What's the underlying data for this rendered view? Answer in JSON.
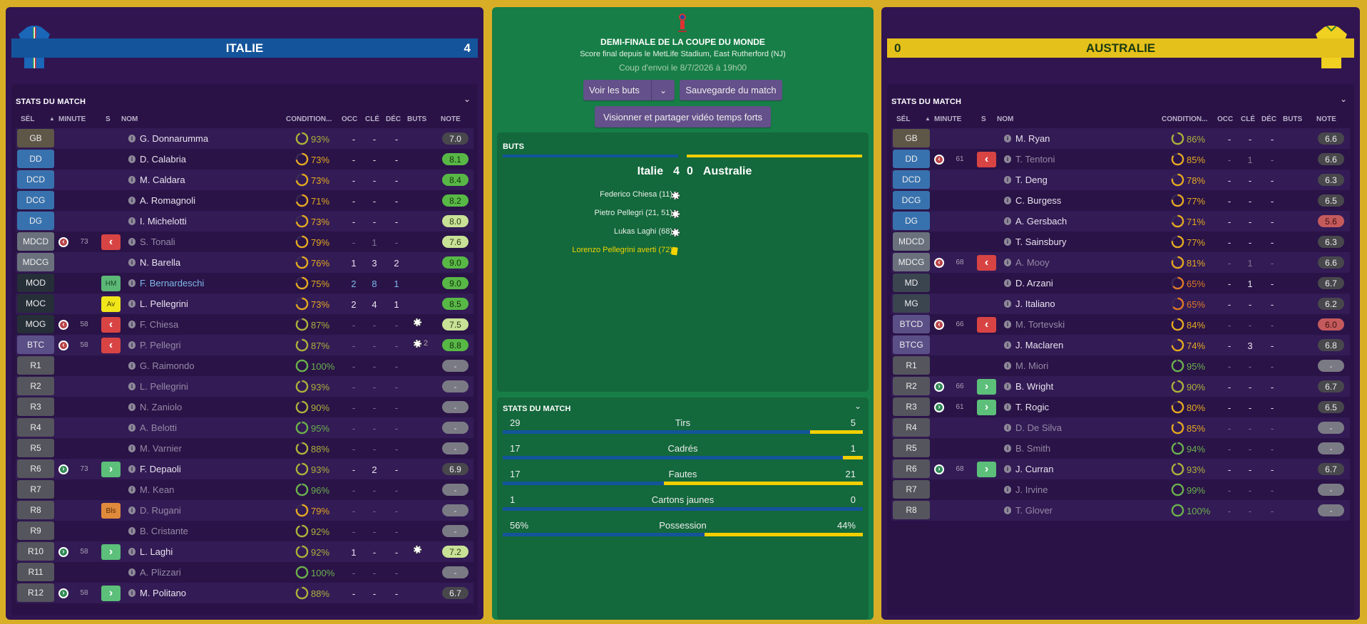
{
  "colors": {
    "italy": "#14549b",
    "australia": "#f3cf00",
    "background": "#d9ae27",
    "panel": "#311551",
    "center": "#177e47"
  },
  "home": {
    "name": "ITALIE",
    "score": "4",
    "stats_title": "STATS DU MATCH",
    "players": [
      {
        "pos": "GB",
        "name": "G. Donnarumma",
        "cond": 93,
        "occ": "-",
        "cle": "-",
        "dec": "-",
        "note": "7.0",
        "noteStyle": "dark"
      },
      {
        "pos": "DD",
        "name": "D. Calabria",
        "cond": 73,
        "occ": "-",
        "cle": "-",
        "dec": "-",
        "note": "8.1",
        "noteStyle": "green"
      },
      {
        "pos": "DCD",
        "name": "M. Caldara",
        "cond": 73,
        "occ": "-",
        "cle": "-",
        "dec": "-",
        "note": "8.4",
        "noteStyle": "green"
      },
      {
        "pos": "DCG",
        "name": "A. Romagnoli",
        "cond": 71,
        "occ": "-",
        "cle": "-",
        "dec": "-",
        "note": "8.2",
        "noteStyle": "green"
      },
      {
        "pos": "DG",
        "name": "I. Michelotti",
        "cond": 73,
        "occ": "-",
        "cle": "-",
        "dec": "-",
        "note": "8.0",
        "noteStyle": "light"
      },
      {
        "pos": "MDCD",
        "sub": "off",
        "minute": "73",
        "name": "S. Tonali",
        "cond": 79,
        "occ": "-",
        "cle": "1",
        "dec": "-",
        "note": "7.6",
        "noteStyle": "light",
        "dim": true
      },
      {
        "pos": "MDCG",
        "name": "N. Barella",
        "cond": 76,
        "occ": "1",
        "cle": "3",
        "dec": "2",
        "note": "9.0",
        "noteStyle": "green"
      },
      {
        "pos": "MOD",
        "badge": "HM",
        "badgeStyle": "hm",
        "name": "F. Bernardeschi",
        "cond": 75,
        "occ": "2",
        "cle": "8",
        "dec": "1",
        "note": "9.0",
        "noteStyle": "green",
        "hl": true
      },
      {
        "pos": "MOC",
        "badge": "Av",
        "badgeStyle": "av",
        "name": "L. Pellegrini",
        "cond": 73,
        "occ": "2",
        "cle": "4",
        "dec": "1",
        "note": "8.5",
        "noteStyle": "green"
      },
      {
        "pos": "MOG",
        "sub": "off",
        "minute": "58",
        "name": "F. Chiesa",
        "cond": 87,
        "occ": "-",
        "cle": "-",
        "dec": "-",
        "goals": 1,
        "note": "7.5",
        "noteStyle": "light",
        "dim": true
      },
      {
        "pos": "BTC",
        "sub": "off",
        "minute": "58",
        "name": "P. Pellegri",
        "cond": 87,
        "occ": "-",
        "cle": "-",
        "dec": "-",
        "goals": 2,
        "goalsLabel": "2",
        "note": "8.8",
        "noteStyle": "green",
        "dim": true
      },
      {
        "pos": "R1",
        "name": "G. Raimondo",
        "cond": 100,
        "occ": "-",
        "cle": "-",
        "dec": "-",
        "note": "-",
        "noteStyle": "none",
        "dim": true
      },
      {
        "pos": "R2",
        "name": "L. Pellegrini",
        "cond": 93,
        "occ": "-",
        "cle": "-",
        "dec": "-",
        "note": "-",
        "noteStyle": "none",
        "dim": true
      },
      {
        "pos": "R3",
        "name": "N. Zaniolo",
        "cond": 90,
        "occ": "-",
        "cle": "-",
        "dec": "-",
        "note": "-",
        "noteStyle": "none",
        "dim": true
      },
      {
        "pos": "R4",
        "name": "A. Belotti",
        "cond": 95,
        "occ": "-",
        "cle": "-",
        "dec": "-",
        "note": "-",
        "noteStyle": "none",
        "dim": true
      },
      {
        "pos": "R5",
        "name": "M. Varnier",
        "cond": 88,
        "occ": "-",
        "cle": "-",
        "dec": "-",
        "note": "-",
        "noteStyle": "none",
        "dim": true
      },
      {
        "pos": "R6",
        "sub": "on",
        "minute": "73",
        "name": "F. Depaoli",
        "cond": 93,
        "occ": "-",
        "cle": "2",
        "dec": "-",
        "note": "6.9",
        "noteStyle": "dark"
      },
      {
        "pos": "R7",
        "name": "M. Kean",
        "cond": 96,
        "occ": "-",
        "cle": "-",
        "dec": "-",
        "note": "-",
        "noteStyle": "none",
        "dim": true
      },
      {
        "pos": "R8",
        "badge": "Bls",
        "badgeStyle": "bls",
        "name": "D. Rugani",
        "cond": 79,
        "occ": "-",
        "cle": "-",
        "dec": "-",
        "note": "-",
        "noteStyle": "none",
        "dim": true
      },
      {
        "pos": "R9",
        "name": "B. Cristante",
        "cond": 92,
        "occ": "-",
        "cle": "-",
        "dec": "-",
        "note": "-",
        "noteStyle": "none",
        "dim": true
      },
      {
        "pos": "R10",
        "sub": "on",
        "minute": "58",
        "name": "L. Laghi",
        "cond": 92,
        "occ": "1",
        "cle": "-",
        "dec": "-",
        "goals": 1,
        "note": "7.2",
        "noteStyle": "light"
      },
      {
        "pos": "R11",
        "name": "A. Plizzari",
        "cond": 100,
        "occ": "-",
        "cle": "-",
        "dec": "-",
        "note": "-",
        "noteStyle": "none",
        "dim": true
      },
      {
        "pos": "R12",
        "sub": "on",
        "minute": "58",
        "name": "M. Politano",
        "cond": 88,
        "occ": "-",
        "cle": "-",
        "dec": "-",
        "note": "6.7",
        "noteStyle": "dark"
      }
    ]
  },
  "away": {
    "name": "AUSTRALIE",
    "score": "0",
    "stats_title": "STATS DU MATCH",
    "players": [
      {
        "pos": "GB",
        "name": "M. Ryan",
        "cond": 86,
        "occ": "-",
        "cle": "-",
        "dec": "-",
        "note": "6.6",
        "noteStyle": "dark"
      },
      {
        "pos": "DD",
        "sub": "off",
        "minute": "61",
        "name": "T. Tentoni",
        "cond": 85,
        "occ": "-",
        "cle": "1",
        "dec": "-",
        "note": "6.6",
        "noteStyle": "dark",
        "dim": true
      },
      {
        "pos": "DCD",
        "name": "T. Deng",
        "cond": 78,
        "occ": "-",
        "cle": "-",
        "dec": "-",
        "note": "6.3",
        "noteStyle": "dark"
      },
      {
        "pos": "DCG",
        "name": "C. Burgess",
        "cond": 77,
        "occ": "-",
        "cle": "-",
        "dec": "-",
        "note": "6.5",
        "noteStyle": "dark"
      },
      {
        "pos": "DG",
        "name": "A. Gersbach",
        "cond": 71,
        "occ": "-",
        "cle": "-",
        "dec": "-",
        "note": "5.6",
        "noteStyle": "red"
      },
      {
        "pos": "MDCD",
        "name": "T. Sainsbury",
        "cond": 77,
        "occ": "-",
        "cle": "-",
        "dec": "-",
        "note": "6.3",
        "noteStyle": "dark"
      },
      {
        "pos": "MDCG",
        "sub": "off",
        "minute": "68",
        "name": "A. Mooy",
        "cond": 81,
        "occ": "-",
        "cle": "1",
        "dec": "-",
        "note": "6.6",
        "noteStyle": "dark",
        "dim": true
      },
      {
        "pos": "MD",
        "name": "D. Arzani",
        "cond": 65,
        "occ": "-",
        "cle": "1",
        "dec": "-",
        "note": "6.7",
        "noteStyle": "dark"
      },
      {
        "pos": "MG",
        "name": "J. Italiano",
        "cond": 65,
        "occ": "-",
        "cle": "-",
        "dec": "-",
        "note": "6.2",
        "noteStyle": "dark"
      },
      {
        "pos": "BTCD",
        "sub": "off",
        "minute": "66",
        "name": "M. Tortevski",
        "cond": 84,
        "occ": "-",
        "cle": "-",
        "dec": "-",
        "note": "6.0",
        "noteStyle": "red",
        "dim": true
      },
      {
        "pos": "BTCG",
        "name": "J. Maclaren",
        "cond": 74,
        "occ": "-",
        "cle": "3",
        "dec": "-",
        "note": "6.8",
        "noteStyle": "dark"
      },
      {
        "pos": "R1",
        "name": "M. Miori",
        "cond": 95,
        "occ": "-",
        "cle": "-",
        "dec": "-",
        "note": "-",
        "noteStyle": "none",
        "dim": true
      },
      {
        "pos": "R2",
        "sub": "on",
        "minute": "66",
        "name": "B. Wright",
        "cond": 90,
        "occ": "-",
        "cle": "-",
        "dec": "-",
        "note": "6.7",
        "noteStyle": "dark"
      },
      {
        "pos": "R3",
        "sub": "on",
        "minute": "61",
        "name": "T. Rogic",
        "cond": 80,
        "occ": "-",
        "cle": "-",
        "dec": "-",
        "note": "6.5",
        "noteStyle": "dark"
      },
      {
        "pos": "R4",
        "name": "D. De Silva",
        "cond": 85,
        "occ": "-",
        "cle": "-",
        "dec": "-",
        "note": "-",
        "noteStyle": "none",
        "dim": true
      },
      {
        "pos": "R5",
        "name": "B. Smith",
        "cond": 94,
        "occ": "-",
        "cle": "-",
        "dec": "-",
        "note": "-",
        "noteStyle": "none",
        "dim": true
      },
      {
        "pos": "R6",
        "sub": "on",
        "minute": "68",
        "name": "J. Curran",
        "cond": 93,
        "occ": "-",
        "cle": "-",
        "dec": "-",
        "note": "6.7",
        "noteStyle": "dark"
      },
      {
        "pos": "R7",
        "name": "J. Irvine",
        "cond": 99,
        "occ": "-",
        "cle": "-",
        "dec": "-",
        "note": "-",
        "noteStyle": "none",
        "dim": true
      },
      {
        "pos": "R8",
        "name": "T. Glover",
        "cond": 100,
        "occ": "-",
        "cle": "-",
        "dec": "-",
        "note": "-",
        "noteStyle": "none",
        "dim": true
      }
    ]
  },
  "columns": {
    "sel": "SÉL",
    "minute": "MINUTE",
    "s": "S",
    "nom": "NOM",
    "condition": "CONDITION...",
    "occ": "OCC",
    "cle": "CLÉ",
    "dec": "DÉC",
    "buts": "BUTS",
    "note": "NOTE"
  },
  "match": {
    "title": "DEMI-FINALE DE LA COUPE DU MONDE",
    "subtitle": "Score final depuis le MetLife Stadium, East Rutherford (NJ)",
    "kickoff": "Coup d'envoi le 8/7/2026 à 19h00",
    "buttons": {
      "goals": "Voir les buts",
      "save": "Sauvegarde du match",
      "video": "Visionner et partager vidéo temps forts"
    },
    "goals_title": "BUTS",
    "home_name": "Italie",
    "away_name": "Australie",
    "home_score": "4",
    "away_score": "0",
    "events": [
      {
        "text": "Federico Chiesa (11)",
        "type": "goal"
      },
      {
        "text": "Pietro Pellegri (21, 51)",
        "type": "goal"
      },
      {
        "text": "Lukas Laghi (68)",
        "type": "goal"
      },
      {
        "text": "Lorenzo Pellegrini averti (72)",
        "type": "yellow-card"
      }
    ],
    "stats_title": "STATS DU MATCH",
    "stats": [
      {
        "label": "Tirs",
        "home": "29",
        "away": "5",
        "homeShare": 85.3
      },
      {
        "label": "Cadrés",
        "home": "17",
        "away": "1",
        "homeShare": 94.4
      },
      {
        "label": "Fautes",
        "home": "17",
        "away": "21",
        "homeShare": 44.7
      },
      {
        "label": "Cartons jaunes",
        "home": "1",
        "away": "0",
        "homeShare": 100
      },
      {
        "label": "Possession",
        "home": "56%",
        "away": "44%",
        "homeShare": 56
      }
    ]
  }
}
